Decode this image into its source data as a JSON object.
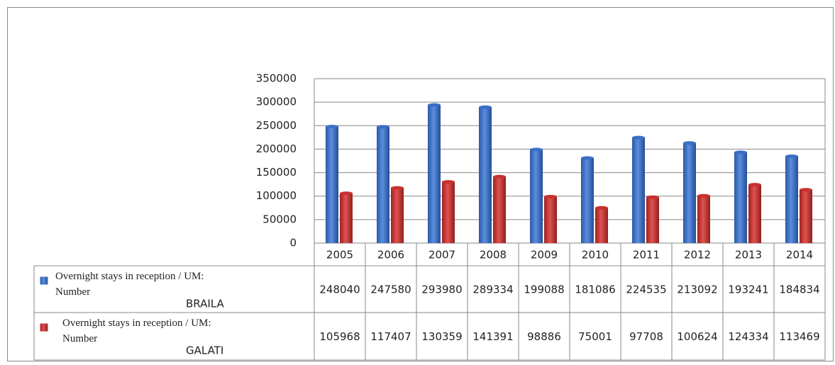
{
  "chart_data": {
    "type": "bar",
    "categories": [
      "2005",
      "2006",
      "2007",
      "2008",
      "2009",
      "2010",
      "2011",
      "2012",
      "2013",
      "2014"
    ],
    "series": [
      {
        "name": "Overnight stays in reception / UM: Number",
        "region": "BRAILA",
        "color": "#3b6fc6",
        "values": [
          248040,
          247580,
          293980,
          289334,
          199088,
          181086,
          224535,
          213092,
          193241,
          184834
        ]
      },
      {
        "name": "Overnight stays in reception / UM: Number",
        "region": "GALATI",
        "color": "#c8312f",
        "values": [
          105968,
          117407,
          130359,
          141391,
          98886,
          75001,
          97708,
          100624,
          124334,
          113469
        ]
      }
    ],
    "ylim": [
      0,
      350000
    ],
    "yticks": [
      0,
      50000,
      100000,
      150000,
      200000,
      250000,
      300000,
      350000
    ],
    "grid": true
  }
}
